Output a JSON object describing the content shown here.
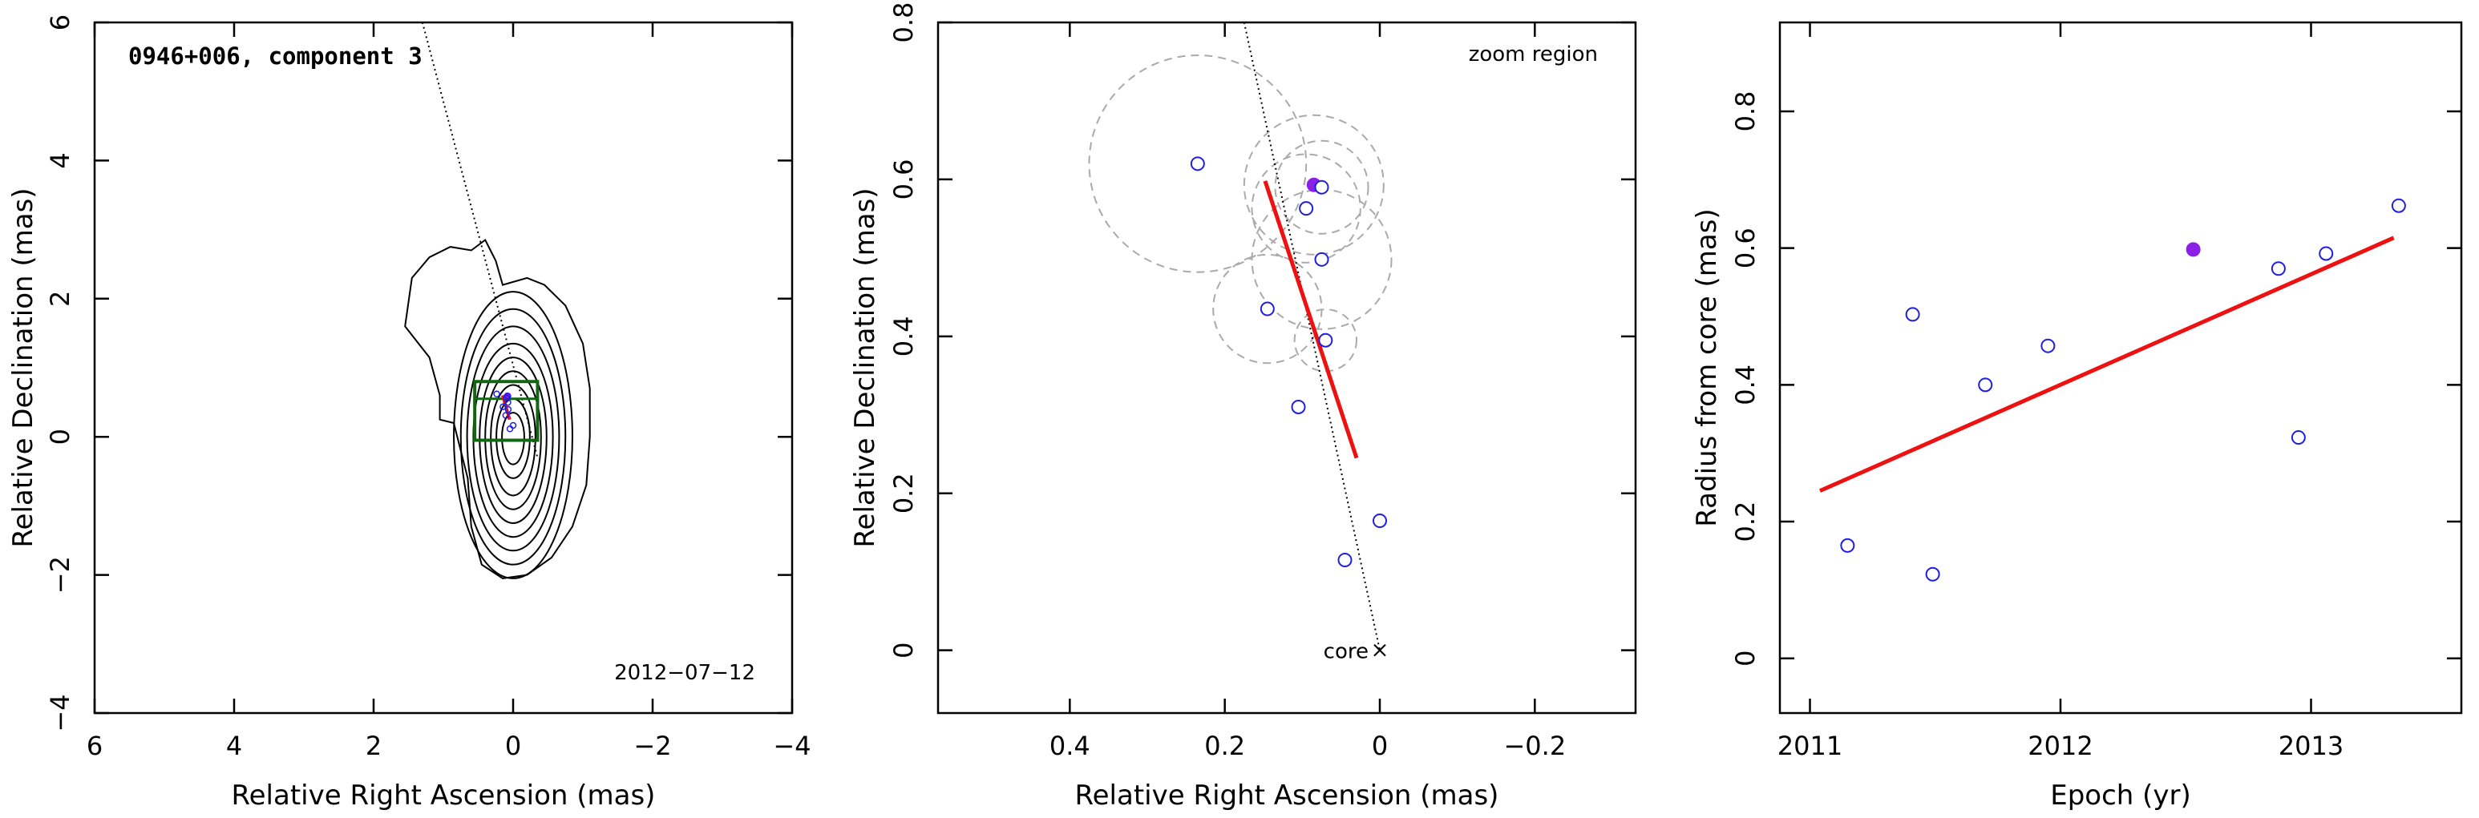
{
  "chart_data": [
    {
      "type": "scatter",
      "title": "0946+006, component 3",
      "xlabel": "Relative Right Ascension (mas)",
      "ylabel": "Relative Declination (mas)",
      "xlim": [
        6,
        -4
      ],
      "ylim": [
        -4,
        6
      ],
      "xticks": [
        6,
        4,
        2,
        0,
        -2,
        -4
      ],
      "yticks": [
        -4,
        -2,
        0,
        2,
        4,
        6
      ],
      "tick_labels_x": [
        "6",
        "4",
        "2",
        "0",
        "−2",
        "−4"
      ],
      "tick_labels_y": [
        "−4",
        "−2",
        "0",
        "2",
        "4",
        "6"
      ],
      "date_label": "2012−07−12",
      "zoom_box": {
        "ra": [
          0.55,
          -0.35
        ],
        "dec": [
          -0.05,
          0.8
        ]
      },
      "direction_line": {
        "ra": [
          1.3,
          -0.35
        ],
        "dec": [
          6.0,
          -0.3
        ]
      },
      "fit_line": {
        "ra": [
          0.15,
          0.05
        ],
        "dec": [
          0.6,
          0.25
        ]
      },
      "contours": {
        "outer": [
          [
            1.45,
            2.3
          ],
          [
            1.55,
            1.6
          ],
          [
            1.2,
            1.15
          ],
          [
            1.05,
            0.6
          ],
          [
            1.05,
            0.25
          ],
          [
            0.85,
            0.2
          ],
          [
            0.65,
            -0.6
          ],
          [
            0.6,
            -1.3
          ],
          [
            0.45,
            -1.85
          ],
          [
            0.15,
            -2.05
          ],
          [
            -0.2,
            -2.0
          ],
          [
            -0.55,
            -1.75
          ],
          [
            -0.85,
            -1.3
          ],
          [
            -1.05,
            -0.7
          ],
          [
            -1.1,
            0.0
          ],
          [
            -1.1,
            0.7
          ],
          [
            -1.0,
            1.35
          ],
          [
            -0.75,
            1.9
          ],
          [
            -0.45,
            2.2
          ],
          [
            -0.2,
            2.3
          ],
          [
            0.15,
            2.2
          ],
          [
            0.25,
            2.55
          ],
          [
            0.4,
            2.85
          ],
          [
            0.6,
            2.7
          ],
          [
            0.9,
            2.75
          ],
          [
            1.2,
            2.6
          ],
          [
            1.45,
            2.3
          ]
        ],
        "inner_center": [
          0.0,
          0.0
        ],
        "inner_rx": [
          0.85,
          0.75,
          0.66,
          0.57,
          0.48,
          0.4,
          0.32,
          0.24,
          0.16
        ],
        "inner_ry_up": [
          2.1,
          1.85,
          1.6,
          1.35,
          1.15,
          0.95,
          0.75,
          0.55,
          0.35
        ],
        "inner_ry_down": [
          2.05,
          1.85,
          1.65,
          1.45,
          1.25,
          1.05,
          0.85,
          0.6,
          0.4
        ]
      }
    },
    {
      "type": "scatter",
      "xlabel": "Relative Right Ascension (mas)",
      "ylabel": "Relative Declination (mas)",
      "xlim": [
        0.57,
        -0.33
      ],
      "ylim": [
        -0.08,
        0.8
      ],
      "xticks": [
        0.4,
        0.2,
        0,
        -0.2
      ],
      "yticks": [
        0,
        0.2,
        0.4,
        0.6,
        0.8
      ],
      "tick_labels_x": [
        "0.4",
        "0.2",
        "0",
        "−0.2"
      ],
      "tick_labels_y": [
        "0",
        "0.2",
        "0.4",
        "0.6",
        "0.8"
      ],
      "zoom_label": "zoom region",
      "core_label": "core",
      "points": [
        {
          "x": 0.235,
          "y": 0.62,
          "r": 0.14,
          "filled": false
        },
        {
          "x": 0.085,
          "y": 0.593,
          "r": 0.09,
          "filled": true
        },
        {
          "x": 0.075,
          "y": 0.59,
          "r": 0.06,
          "filled": false
        },
        {
          "x": 0.095,
          "y": 0.563,
          "r": 0.07,
          "filled": false
        },
        {
          "x": 0.075,
          "y": 0.498,
          "r": 0.09,
          "filled": false
        },
        {
          "x": 0.145,
          "y": 0.435,
          "r": 0.07,
          "filled": false
        },
        {
          "x": 0.07,
          "y": 0.395,
          "r": 0.04,
          "filled": false
        },
        {
          "x": 0.105,
          "y": 0.31,
          "r": 0,
          "filled": false
        },
        {
          "x": 0.0,
          "y": 0.165,
          "r": 0,
          "filled": false
        },
        {
          "x": 0.045,
          "y": 0.115,
          "r": 0,
          "filled": false
        }
      ],
      "direction_line": {
        "x": [
          0.175,
          0.0
        ],
        "y": [
          0.8,
          0.0
        ]
      },
      "fit_line": {
        "x": [
          0.148,
          0.03
        ],
        "y": [
          0.598,
          0.245
        ]
      },
      "core": {
        "x": 0.0,
        "y": 0.0
      }
    },
    {
      "type": "scatter",
      "xlabel": "Epoch (yr)",
      "ylabel": "Radius from core (mas)",
      "xlim": [
        2010.88,
        2013.6
      ],
      "ylim": [
        -0.08,
        0.93
      ],
      "xticks": [
        2011,
        2012,
        2013
      ],
      "yticks": [
        0,
        0.2,
        0.4,
        0.6,
        0.8
      ],
      "tick_labels_x": [
        "2011",
        "2012",
        "2013"
      ],
      "tick_labels_y": [
        "0",
        "0.2",
        "0.4",
        "0.6",
        "0.8"
      ],
      "points": [
        {
          "x": 2011.15,
          "y": 0.165,
          "filled": false
        },
        {
          "x": 2011.41,
          "y": 0.503,
          "filled": false
        },
        {
          "x": 2011.49,
          "y": 0.123,
          "filled": false
        },
        {
          "x": 2011.7,
          "y": 0.4,
          "filled": false
        },
        {
          "x": 2011.95,
          "y": 0.457,
          "filled": false
        },
        {
          "x": 2012.53,
          "y": 0.598,
          "filled": true
        },
        {
          "x": 2012.87,
          "y": 0.57,
          "filled": false
        },
        {
          "x": 2012.95,
          "y": 0.323,
          "filled": false
        },
        {
          "x": 2013.06,
          "y": 0.592,
          "filled": false
        },
        {
          "x": 2013.35,
          "y": 0.662,
          "filled": false
        }
      ],
      "fit_line": {
        "x": [
          2011.04,
          2013.33
        ],
        "y": [
          0.245,
          0.615
        ]
      }
    }
  ],
  "colors": {
    "axis": "#000000",
    "point": "#1f1fe0",
    "point_filled": "#8a1fe8",
    "fit": "#ee1111",
    "zoom_box": "#116611",
    "circles": "#aaaaaa",
    "contours": "#000000"
  }
}
